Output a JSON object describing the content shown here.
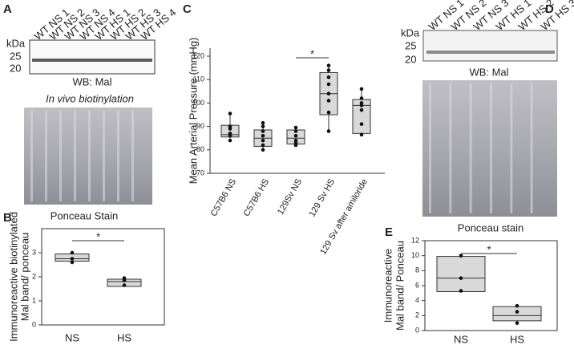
{
  "panel_labels": [
    "A",
    "B",
    "C",
    "D",
    "E"
  ],
  "blot_a": {
    "kda": "kDa",
    "markers": [
      25,
      20
    ],
    "lanes": [
      "WT NS 1",
      "WT NS 2",
      "WT NS 3",
      "WT NS 4",
      "WT HS 1",
      "WT HS 2",
      "WT HS 3",
      "WT HS 4"
    ],
    "caption": "WB: Mal",
    "subcaption": "In vivo biotinylation",
    "stain_caption": "Ponceau Stain"
  },
  "blot_d": {
    "kda": "kDa",
    "markers": [
      25,
      20
    ],
    "lanes": [
      "WT NS 1",
      "WT NS 2",
      "WT NS 3",
      "WT HS 1",
      "WT HS 2",
      "WT HS 3"
    ],
    "caption": "WB: Mal",
    "stain_caption": "Ponceau stain"
  },
  "chart_data": [
    {
      "type": "box",
      "ylabel": [
        "Immunoreactive biotinylated",
        "Mal band/ ponceau"
      ],
      "categories": [
        "NS",
        "HS"
      ],
      "ylim": [
        0,
        4
      ],
      "yticks": [
        0,
        1,
        2,
        3
      ],
      "annotation": "*",
      "boxes": [
        {
          "min": 2.6,
          "q1": 2.65,
          "median": 2.75,
          "q3": 2.95,
          "max": 3.0,
          "points": [
            2.6,
            2.75,
            3.0
          ]
        },
        {
          "min": 1.6,
          "q1": 1.6,
          "median": 1.8,
          "q3": 1.9,
          "max": 1.95,
          "points": [
            1.65,
            1.85,
            1.95
          ]
        }
      ]
    },
    {
      "type": "box",
      "ylabel": [
        "Mean Arterial Pressure (mmHg)"
      ],
      "categories": [
        "C57B6 NS",
        "C57B6 HS",
        "129Sv NS",
        "129 Sv HS",
        "129 Sv after amiloride"
      ],
      "ylim": [
        70,
        120
      ],
      "yticks": [
        70,
        80,
        90,
        100,
        110,
        120
      ],
      "annotation": "*",
      "boxes": [
        {
          "min": 84,
          "q1": 85.5,
          "median": 86.5,
          "q3": 90.5,
          "max": 95.5,
          "points": [
            84,
            86,
            87,
            89,
            90,
            95.5
          ]
        },
        {
          "min": 79.5,
          "q1": 81.5,
          "median": 85,
          "q3": 88.5,
          "max": 91.5,
          "points": [
            80,
            82,
            84,
            86,
            88,
            90,
            91.5
          ]
        },
        {
          "min": 82,
          "q1": 82.5,
          "median": 85,
          "q3": 88.5,
          "max": 90,
          "points": [
            82,
            83,
            84,
            86,
            88,
            89.5
          ]
        },
        {
          "min": 88,
          "q1": 95,
          "median": 104,
          "q3": 113,
          "max": 116,
          "points": [
            88,
            96,
            101,
            104,
            108,
            111,
            114,
            116
          ]
        },
        {
          "min": 86,
          "q1": 87,
          "median": 99,
          "q3": 101.5,
          "max": 106,
          "points": [
            86.5,
            91,
            97,
            99,
            100,
            102,
            106
          ]
        }
      ]
    },
    {
      "type": "box",
      "ylabel": [
        "Immunoreactive",
        "Mal band/ Ponceau"
      ],
      "categories": [
        "NS",
        "HS"
      ],
      "ylim": [
        0,
        12
      ],
      "yticks": [
        0,
        2,
        4,
        6,
        8,
        10,
        12
      ],
      "annotation": "*",
      "boxes": [
        {
          "min": 5.2,
          "q1": 5.2,
          "median": 7,
          "q3": 9.9,
          "max": 10,
          "points": [
            5.3,
            7,
            10
          ]
        },
        {
          "min": 1.0,
          "q1": 1.3,
          "median": 2,
          "q3": 3.2,
          "max": 3.3,
          "points": [
            1.0,
            2.5,
            3.3
          ]
        }
      ]
    }
  ]
}
